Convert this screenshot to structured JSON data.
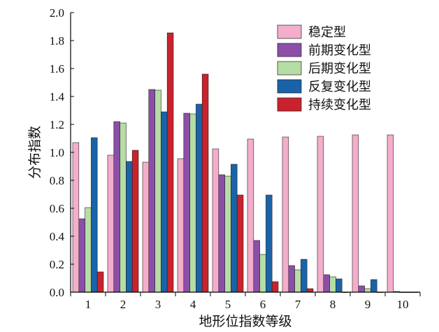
{
  "chart_data": {
    "type": "bar",
    "xlabel": "地形位指数等级",
    "ylabel": "分布指数",
    "categories": [
      "1",
      "2",
      "3",
      "4",
      "5",
      "6",
      "7",
      "8",
      "9",
      "10"
    ],
    "ylim": [
      0,
      2.0
    ],
    "yticks": [
      "0.0",
      "0.2",
      "0.4",
      "0.6",
      "0.8",
      "1.0",
      "1.2",
      "1.4",
      "1.6",
      "1.8",
      "2.0"
    ],
    "grid": false,
    "legend_position": "top-right",
    "series": [
      {
        "name": "稳定型",
        "color": "#F4AECB",
        "values": [
          1.07,
          0.98,
          0.93,
          0.955,
          1.025,
          1.095,
          1.11,
          1.115,
          1.125,
          1.125
        ]
      },
      {
        "name": "前期变化型",
        "color": "#8C4FA8",
        "values": [
          0.525,
          1.22,
          1.45,
          1.28,
          0.84,
          0.37,
          0.19,
          0.125,
          0.045,
          0.005
        ]
      },
      {
        "name": "后期变化型",
        "color": "#B5DDA4",
        "values": [
          0.605,
          1.21,
          1.445,
          1.275,
          0.83,
          0.27,
          0.16,
          0.11,
          0.025,
          0.0
        ]
      },
      {
        "name": "反复变化型",
        "color": "#1A63A8",
        "values": [
          1.105,
          0.935,
          1.29,
          1.345,
          0.915,
          0.695,
          0.235,
          0.095,
          0.09,
          0.0
        ]
      },
      {
        "name": "持续变化型",
        "color": "#C8232C",
        "values": [
          0.145,
          1.015,
          1.855,
          1.56,
          0.695,
          0.075,
          0.025,
          0.0,
          0.0,
          0.0
        ]
      }
    ]
  }
}
